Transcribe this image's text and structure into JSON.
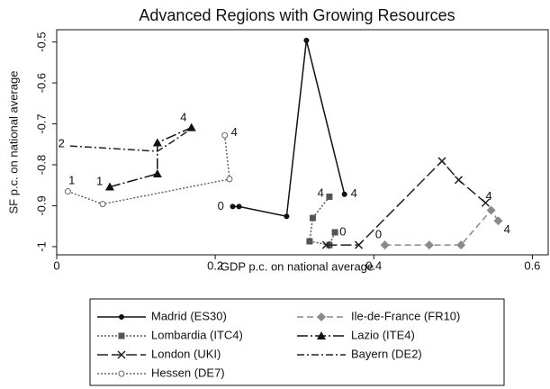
{
  "chart_data": {
    "type": "line",
    "title": "Advanced Regions with Growing Resources",
    "x_label": "GDP p.c. on national average",
    "y_label": "SF p.c. on national average",
    "xlim": [
      0,
      0.62
    ],
    "ylim": [
      -1.02,
      -0.47
    ],
    "y_inverted": true,
    "xticks": [
      0,
      0.2,
      0.4,
      0.6
    ],
    "yticks": [
      -1,
      -0.9,
      -0.8,
      -0.7,
      -0.6,
      -0.5
    ],
    "series": [
      {
        "name": "Madrid (ES30)",
        "color": "#111111",
        "dash": "solid",
        "marker": "circle",
        "x": [
          0.222,
          0.23,
          0.29,
          0.315,
          0.363
        ],
        "values": [
          -0.902,
          -0.902,
          -0.926,
          -0.496,
          -0.872
        ]
      },
      {
        "name": "Ile-de-France (FR10)",
        "color": "#8a8a8a",
        "dash": "dashed",
        "marker": "diamond",
        "x": [
          0.414,
          0.47,
          0.51,
          0.548,
          0.557
        ],
        "values": [
          -0.996,
          -0.996,
          -0.996,
          -0.911,
          -0.937
        ]
      },
      {
        "name": "Lombardia (ITC4)",
        "color": "#555555",
        "dash": "dotted",
        "marker": "square",
        "x": [
          0.351,
          0.344,
          0.319,
          0.323,
          0.344
        ],
        "values": [
          -0.965,
          -0.996,
          -0.987,
          -0.93,
          -0.878
        ]
      },
      {
        "name": "Lazio (ITE4)",
        "color": "#111111",
        "dash": "longdashdot",
        "marker": "triangle",
        "x": [
          0.067,
          0.127,
          0.127,
          0.17
        ],
        "values": [
          -0.854,
          -0.822,
          -0.746,
          -0.709
        ]
      },
      {
        "name": "London (UKI)",
        "color": "#222222",
        "dash": "longdash",
        "marker": "x",
        "x": [
          0.34,
          0.381,
          0.486,
          0.507,
          0.541
        ],
        "values": [
          -0.996,
          -0.996,
          -0.791,
          -0.837,
          -0.893
        ]
      },
      {
        "name": "Bayern (DE2)",
        "color": "#222222",
        "dash": "dashdot",
        "marker": "none",
        "x": [
          0.017,
          0.127,
          0.144,
          0.166
        ],
        "values": [
          -0.754,
          -0.767,
          -0.746,
          -0.717
        ]
      },
      {
        "name": "Hessen (DE7)",
        "color": "#666666",
        "dash": "dotted",
        "marker": "hollowcircle",
        "x": [
          0.014,
          0.058,
          0.218,
          0.212
        ],
        "values": [
          -0.865,
          -0.896,
          -0.835,
          -0.728
        ]
      }
    ],
    "annotations": [
      {
        "text": "0",
        "x": 0.207,
        "y": -0.902
      },
      {
        "text": "4",
        "x": 0.375,
        "y": -0.872
      },
      {
        "text": "4",
        "x": 0.333,
        "y": -0.87
      },
      {
        "text": "0",
        "x": 0.361,
        "y": -0.965
      },
      {
        "text": "0",
        "x": 0.406,
        "y": -0.972
      },
      {
        "text": "4",
        "x": 0.545,
        "y": -0.878
      },
      {
        "text": "4",
        "x": 0.568,
        "y": -0.96
      },
      {
        "text": "1",
        "x": 0.054,
        "y": -0.842
      },
      {
        "text": "4",
        "x": 0.16,
        "y": -0.686
      },
      {
        "text": "2",
        "x": 0.006,
        "y": -0.75
      },
      {
        "text": "1",
        "x": 0.019,
        "y": -0.84
      },
      {
        "text": "4",
        "x": 0.224,
        "y": -0.722
      }
    ]
  }
}
